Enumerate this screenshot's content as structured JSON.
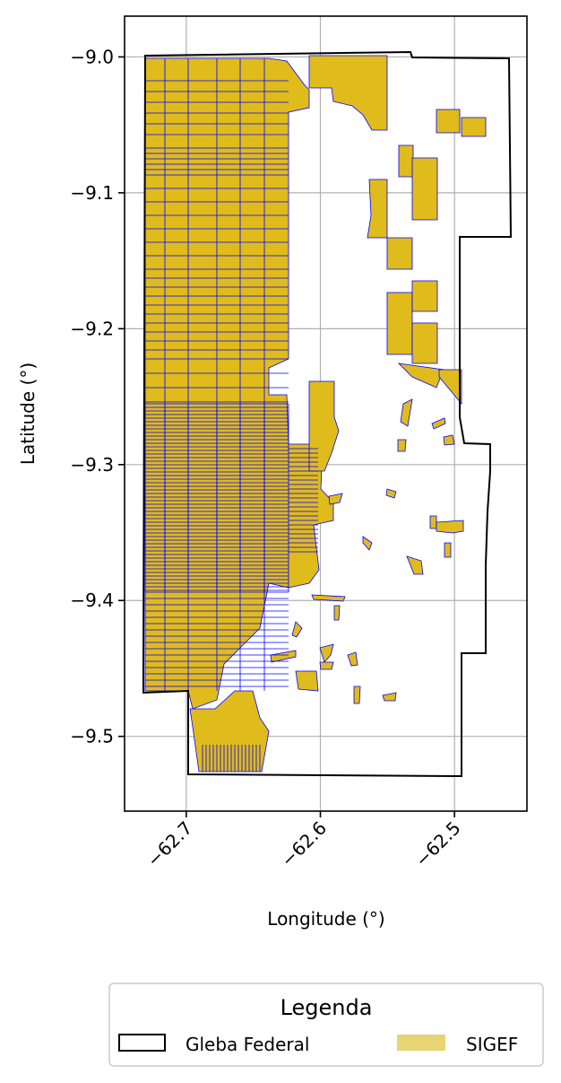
{
  "chart_data": {
    "type": "map",
    "xlabel": "Longitude (°)",
    "ylabel": "Latitude (°)",
    "xlim": [
      -62.746,
      -62.446
    ],
    "ylim": [
      -9.555,
      -8.97
    ],
    "xticks": [
      {
        "value": -62.7,
        "label": "−62.7"
      },
      {
        "value": -62.6,
        "label": "−62.6"
      },
      {
        "value": -62.5,
        "label": "−62.5"
      }
    ],
    "yticks": [
      {
        "value": -9.0,
        "label": "−9.0"
      },
      {
        "value": -9.1,
        "label": "−9.1"
      },
      {
        "value": -9.2,
        "label": "−9.2"
      },
      {
        "value": -9.3,
        "label": "−9.3"
      },
      {
        "value": -9.4,
        "label": "−9.4"
      },
      {
        "value": -9.5,
        "label": "−9.5"
      }
    ],
    "grid": true,
    "colors": {
      "gleba_edge": "#000000",
      "sigef_fill": "#e0bb1c",
      "sigef_edge": "#0000ff",
      "sigef_legend": "#e8d474",
      "grid": "#b0b0b0"
    },
    "legend": {
      "title": "Legenda",
      "placement": "below",
      "entries": [
        {
          "label": "Gleba Federal",
          "style": "outline"
        },
        {
          "label": "SIGEF",
          "style": "fill"
        }
      ]
    }
  }
}
